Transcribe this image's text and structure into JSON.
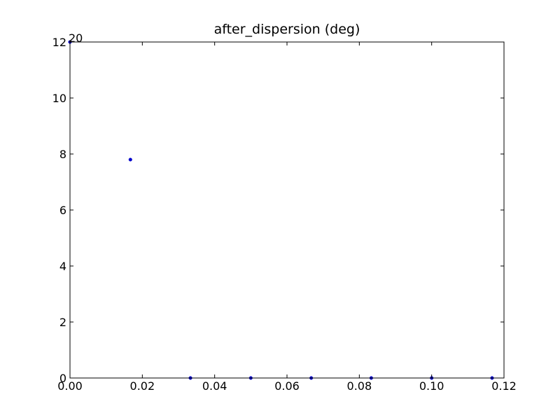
{
  "chart_data": {
    "type": "scatter",
    "title": "after_dispersion (deg)",
    "xlabel": "",
    "ylabel": "",
    "xlim": [
      0.0,
      0.12
    ],
    "ylim": [
      0,
      12
    ],
    "x_ticks": [
      "0.00",
      "0.02",
      "0.04",
      "0.06",
      "0.08",
      "0.10",
      "0.12"
    ],
    "y_ticks": [
      "0",
      "2",
      "4",
      "6",
      "8",
      "10",
      "12"
    ],
    "grid": false,
    "marker_color": "#0000cc",
    "series": [
      {
        "x": [
          0.0,
          0.0167,
          0.0333,
          0.05,
          0.0667,
          0.0833,
          0.1,
          0.1167
        ],
        "y": [
          12.0,
          7.8,
          0.0,
          0.0,
          0.0,
          0.0,
          0.0,
          0.0
        ]
      }
    ],
    "annotations": [
      {
        "text": "20"
      }
    ]
  }
}
